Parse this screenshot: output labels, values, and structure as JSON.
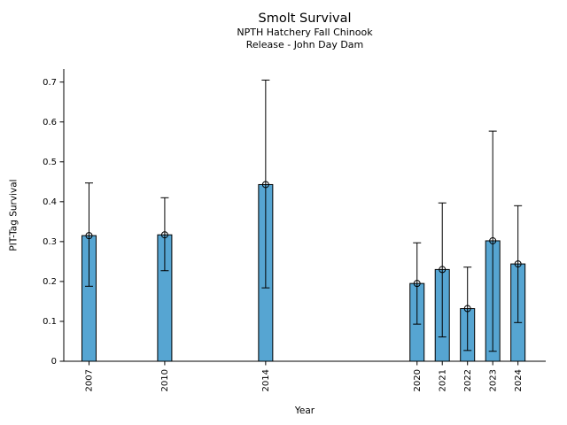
{
  "figure": {
    "title": "Smolt Survival",
    "subtitle_lines": [
      "NPTH Hatchery Fall Chinook",
      "Release - John Day Dam"
    ]
  },
  "chart_data": {
    "type": "bar",
    "title": "Smolt Survival",
    "subtitle_lines": [
      "NPTH Hatchery Fall Chinook",
      "Release - John Day Dam"
    ],
    "xlabel": "Year",
    "ylabel": "PIT-Tag Survival",
    "categories": [
      2007,
      2010,
      2014,
      2020,
      2021,
      2022,
      2023,
      2024
    ],
    "values": [
      0.315,
      0.317,
      0.443,
      0.195,
      0.23,
      0.132,
      0.302,
      0.244
    ],
    "error_low": [
      0.188,
      0.227,
      0.184,
      0.093,
      0.061,
      0.027,
      0.025,
      0.097
    ],
    "error_high": [
      0.447,
      0.41,
      0.705,
      0.297,
      0.397,
      0.236,
      0.577,
      0.39
    ],
    "xlim": [
      2006,
      2025.1
    ],
    "ylim": [
      0,
      0.733
    ],
    "ytick_labels": [
      "0",
      "0.1",
      "0.2",
      "0.3",
      "0.4",
      "0.5",
      "0.6",
      "0.7"
    ],
    "ytick_values": [
      0,
      0.1,
      0.2,
      0.3,
      0.4,
      0.5,
      0.6,
      0.7
    ],
    "grid": false,
    "legend": null,
    "bar_color": "#56a5d2",
    "bar_edge_color": "#000000",
    "errorbar_color": "#000000",
    "marker": "open-circle"
  }
}
